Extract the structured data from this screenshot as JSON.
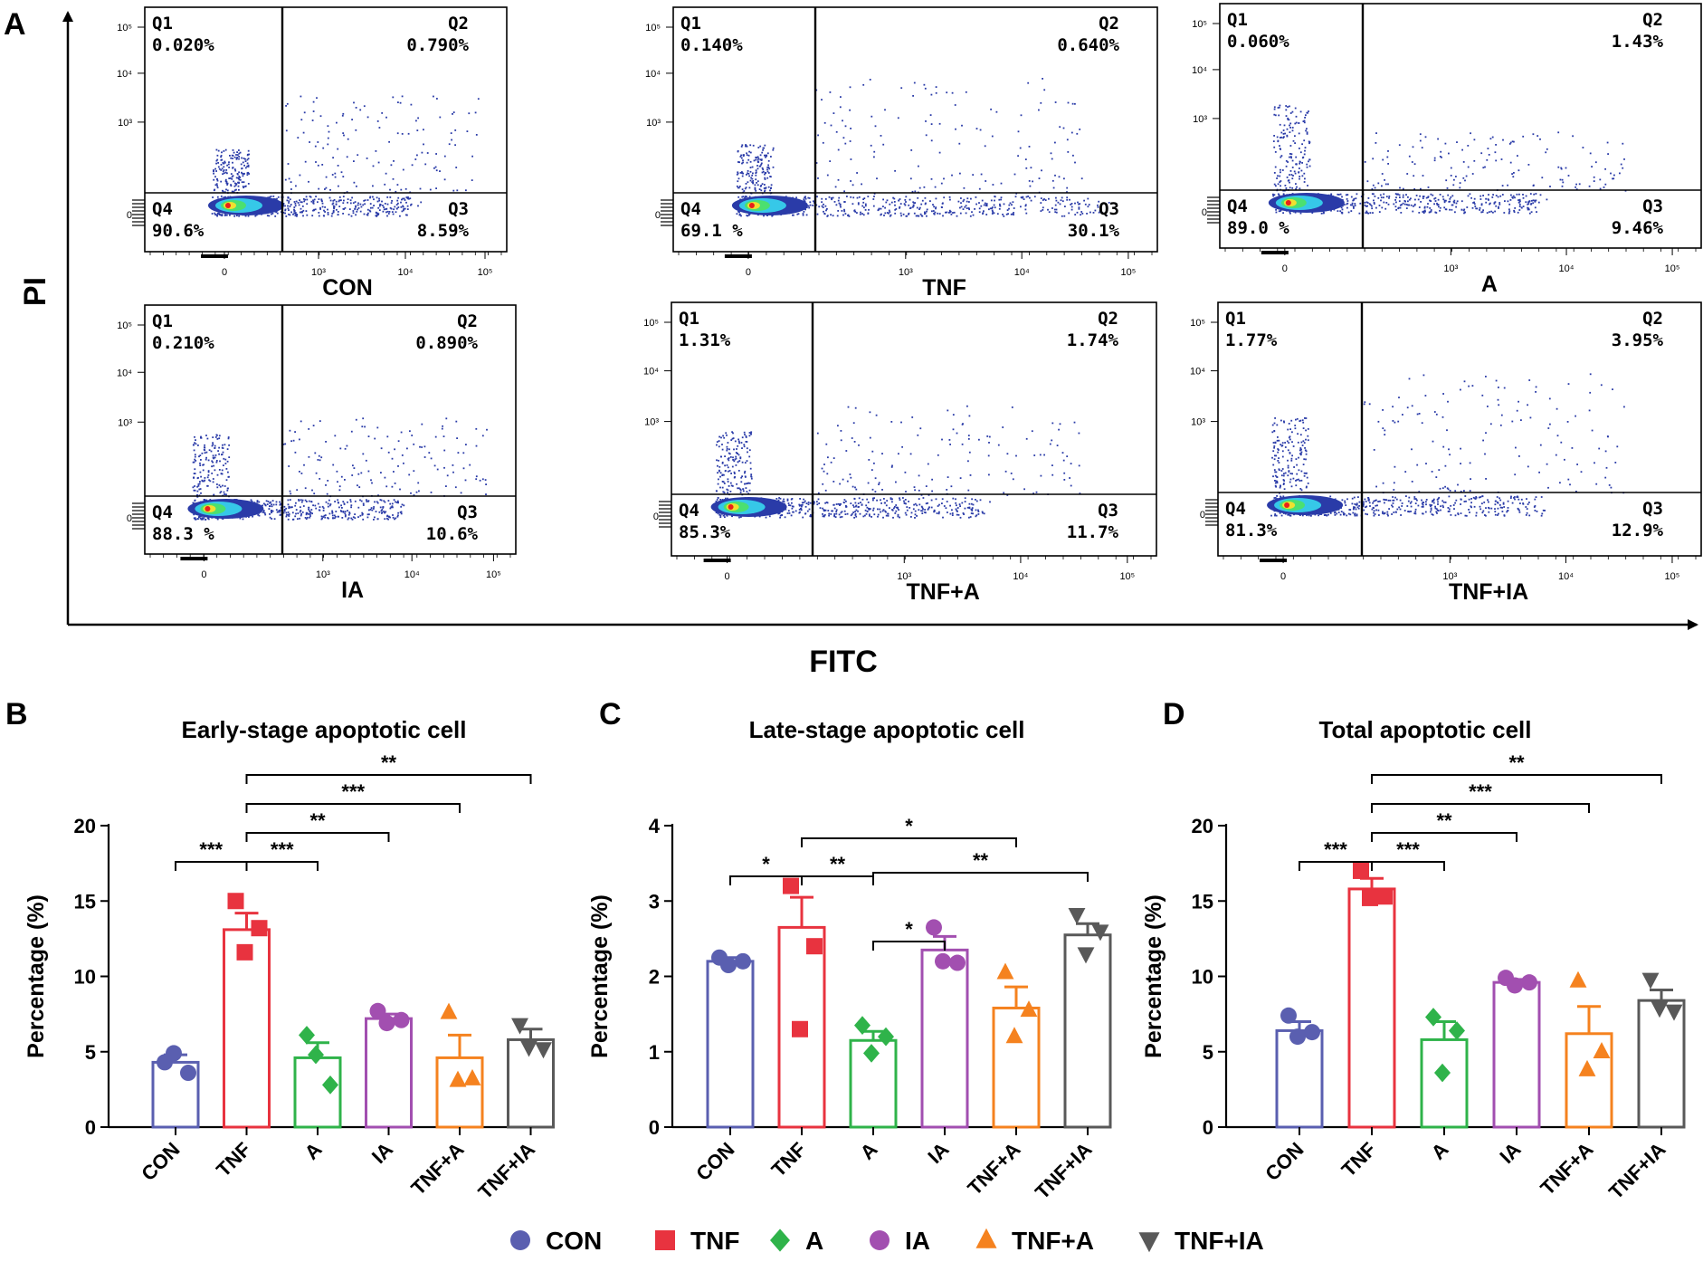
{
  "panel_labels": {
    "a": "A",
    "b": "B",
    "c": "C",
    "d": "D"
  },
  "flow": {
    "y_axis_label": "PI",
    "x_axis_label": "FITC",
    "tick_labels": {
      "zero": "0",
      "e3": "10³",
      "e4": "10⁴",
      "e5": "10⁵"
    },
    "quadrant_names": [
      "Q1",
      "Q2",
      "Q3",
      "Q4"
    ],
    "plots": [
      {
        "name": "CON",
        "q1": "0.020%",
        "q2": "0.790%",
        "q3": "8.59%",
        "q4": "90.6%"
      },
      {
        "name": "TNF",
        "q1": "0.140%",
        "q2": "0.640%",
        "q3": "30.1%",
        "q4": "69.1 %"
      },
      {
        "name": "A",
        "q1": "0.060%",
        "q2": "1.43%",
        "q3": "9.46%",
        "q4": "89.0 %"
      },
      {
        "name": "IA",
        "q1": "0.210%",
        "q2": "0.890%",
        "q3": "10.6%",
        "q4": "88.3 %"
      },
      {
        "name": "TNF+A",
        "q1": "1.31%",
        "q2": "1.74%",
        "q3": "11.7%",
        "q4": "85.3%"
      },
      {
        "name": "TNF+IA",
        "q1": "1.77%",
        "q2": "3.95%",
        "q3": "12.9%",
        "q4": "81.3%"
      }
    ]
  },
  "colors": {
    "CON": "#5a5fb0",
    "TNF": "#e8333f",
    "A": "#2fb34a",
    "IA": "#a24fb0",
    "TNF+A": "#f5821f",
    "TNF+IA": "#595959",
    "density_low": "#2a3ba8",
    "density_mid": "#36c8e8",
    "density_high": "#f0e030",
    "density_peak": "#e8201a"
  },
  "chart_data": [
    {
      "type": "bar",
      "panel": "B",
      "title": "Early-stage apoptotic cell",
      "ylabel": "Percentage (%)",
      "xlabel": "",
      "ylim": [
        0,
        20
      ],
      "yticks": [
        0,
        5,
        10,
        15,
        20
      ],
      "categories": [
        "CON",
        "TNF",
        "A",
        "IA",
        "TNF+A",
        "TNF+IA"
      ],
      "values": [
        4.3,
        13.1,
        4.6,
        7.2,
        4.6,
        5.8
      ],
      "errors": [
        0.5,
        1.1,
        1.0,
        0.3,
        1.5,
        0.7
      ],
      "points": [
        [
          4.3,
          3.6,
          4.9
        ],
        [
          15.0,
          13.2,
          11.6
        ],
        [
          6.1,
          2.8,
          4.8
        ],
        [
          7.7,
          7.1,
          6.9
        ],
        [
          7.6,
          3.2,
          3.1
        ],
        [
          6.8,
          5.2,
          5.3
        ]
      ],
      "significance": [
        {
          "from": 0,
          "to": 1,
          "label": "***"
        },
        {
          "from": 1,
          "to": 2,
          "label": "***"
        },
        {
          "from": 1,
          "to": 3,
          "label": "**"
        },
        {
          "from": 1,
          "to": 4,
          "label": "***"
        },
        {
          "from": 1,
          "to": 5,
          "label": "**"
        }
      ]
    },
    {
      "type": "bar",
      "panel": "C",
      "title": "Late-stage apoptotic cell",
      "ylabel": "Percentage (%)",
      "xlabel": "",
      "ylim": [
        0,
        4
      ],
      "yticks": [
        0,
        1,
        2,
        3,
        4
      ],
      "categories": [
        "CON",
        "TNF",
        "A",
        "IA",
        "TNF+A",
        "TNF+IA"
      ],
      "values": [
        2.2,
        2.65,
        1.15,
        2.35,
        1.58,
        2.55
      ],
      "errors": [
        0.05,
        0.4,
        0.12,
        0.18,
        0.28,
        0.15
      ],
      "points": [
        [
          2.25,
          2.2,
          2.15
        ],
        [
          3.2,
          2.4,
          1.3
        ],
        [
          1.35,
          1.2,
          0.98
        ],
        [
          2.65,
          2.18,
          2.2
        ],
        [
          2.05,
          1.55,
          1.2
        ],
        [
          2.82,
          2.6,
          2.3
        ]
      ],
      "significance": [
        {
          "from": 0,
          "to": 1,
          "label": "*"
        },
        {
          "from": 1,
          "to": 2,
          "label": "**"
        },
        {
          "from": 1,
          "to": 4,
          "label": "*"
        },
        {
          "from": 2,
          "to": 3,
          "label": "*"
        },
        {
          "from": 2,
          "to": 5,
          "label": "**"
        }
      ]
    },
    {
      "type": "bar",
      "panel": "D",
      "title": "Total apoptotic cell",
      "ylabel": "Percentage (%)",
      "xlabel": "",
      "ylim": [
        0,
        20
      ],
      "yticks": [
        0,
        5,
        10,
        15,
        20
      ],
      "categories": [
        "CON",
        "TNF",
        "A",
        "IA",
        "TNF+A",
        "TNF+IA"
      ],
      "values": [
        6.4,
        15.8,
        5.8,
        9.6,
        6.2,
        8.4
      ],
      "errors": [
        0.6,
        0.7,
        1.2,
        0.2,
        1.8,
        0.7
      ],
      "points": [
        [
          7.4,
          6.3,
          6.0
        ],
        [
          17.0,
          15.3,
          15.2
        ],
        [
          7.3,
          6.4,
          3.6
        ],
        [
          9.9,
          9.6,
          9.4
        ],
        [
          9.7,
          5.0,
          3.8
        ],
        [
          9.8,
          7.7,
          7.9
        ]
      ],
      "significance": [
        {
          "from": 0,
          "to": 1,
          "label": "***"
        },
        {
          "from": 1,
          "to": 2,
          "label": "***"
        },
        {
          "from": 1,
          "to": 3,
          "label": "**"
        },
        {
          "from": 1,
          "to": 4,
          "label": "***"
        },
        {
          "from": 1,
          "to": 5,
          "label": "**"
        }
      ]
    }
  ],
  "legend": [
    {
      "label": "CON",
      "shape": "circle"
    },
    {
      "label": "TNF",
      "shape": "square"
    },
    {
      "label": "A",
      "shape": "diamond"
    },
    {
      "label": "IA",
      "shape": "circle"
    },
    {
      "label": "TNF+A",
      "shape": "triangle-up"
    },
    {
      "label": "TNF+IA",
      "shape": "triangle-down"
    }
  ]
}
